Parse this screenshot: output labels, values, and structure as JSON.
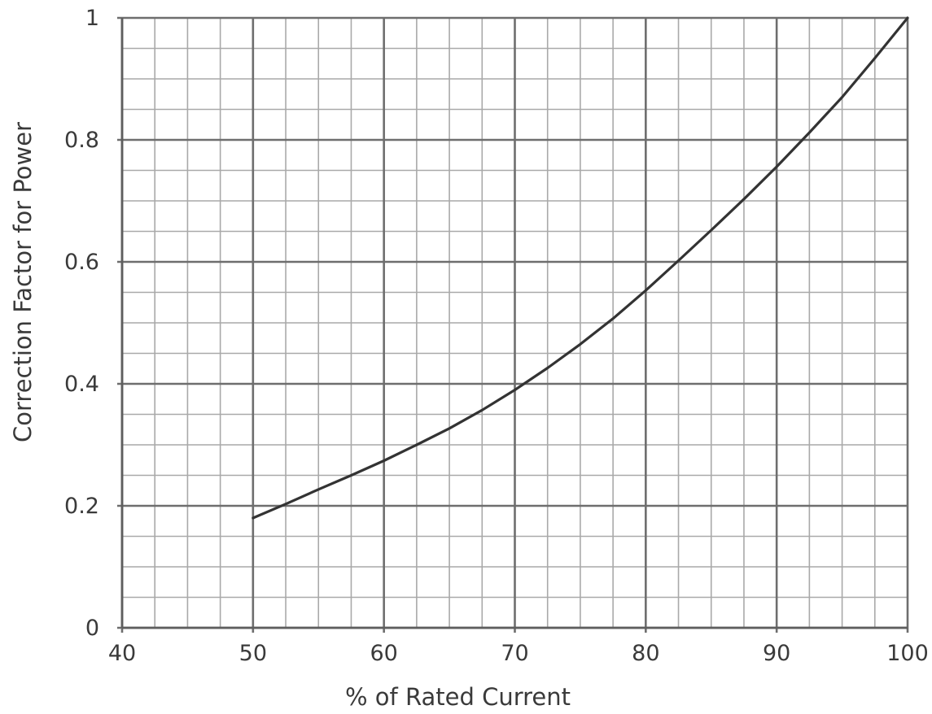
{
  "chart_data": {
    "type": "line",
    "title": "",
    "xlabel": "% of Rated Current",
    "ylabel": "Correction Factor for Power",
    "xlim": [
      40,
      100
    ],
    "ylim": [
      0,
      1
    ],
    "x_ticks": [
      40,
      50,
      60,
      70,
      80,
      90,
      100
    ],
    "y_ticks": [
      0,
      0.2,
      0.4,
      0.6,
      0.8,
      1
    ],
    "x_minor_step": 2.5,
    "y_minor_step": 0.05,
    "grid": true,
    "legend": "none",
    "line_color": "#333333",
    "series": [
      {
        "x": [
          50,
          52.5,
          55,
          57.5,
          60,
          62.5,
          65,
          67.5,
          70,
          72.5,
          75,
          77.5,
          80,
          82.5,
          85,
          87.5,
          90,
          92.5,
          95,
          97.5,
          100
        ],
        "y": [
          0.18,
          0.203,
          0.227,
          0.25,
          0.274,
          0.3,
          0.327,
          0.357,
          0.39,
          0.426,
          0.465,
          0.507,
          0.553,
          0.602,
          0.652,
          0.703,
          0.756,
          0.812,
          0.87,
          0.934,
          1.0
        ]
      }
    ]
  }
}
